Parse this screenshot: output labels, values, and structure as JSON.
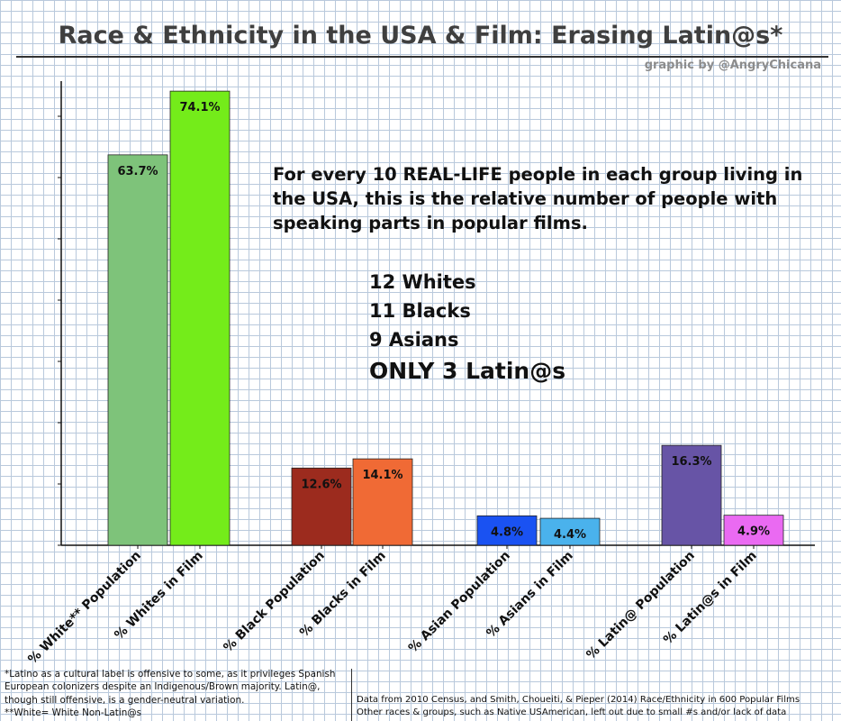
{
  "title": "Race & Ethnicity in the USA & Film: Erasing Latin@s*",
  "credit": "graphic by @AngryChicana",
  "annotation": "For every 10 REAL-LIFE people in each group living in the USA, this is the relative number of people with speaking parts in popular films.",
  "counts": [
    "12 Whites",
    "11 Blacks",
    "9 Asians"
  ],
  "counts_emphasis": "ONLY  3 Latin@s",
  "footnotes_left": [
    "*Latino as a cultural label is offensive to some, as it privileges Spanish European colonizers despite an Indigenous/Brown majority. Latin@, though still offensive, is a gender-neutral variation.",
    "**White= White Non-Latin@s"
  ],
  "footnotes_right": [
    "Data from 2010 Census, and Smith, Choueiti, & Pieper (2014) Race/Ethnicity in 600 Popular Films",
    "Other races & groups, such as Native USAmerican, left out due to small #s and/or lack of data"
  ],
  "chart_data": {
    "type": "bar",
    "title": "Race & Ethnicity in the USA & Film: Erasing Latin@s*",
    "xlabel": "",
    "ylabel": "",
    "ylim": [
      0,
      75
    ],
    "grid": true,
    "data_labels": true,
    "bars": [
      {
        "category": "% White** Population",
        "value": 63.7,
        "label": "63.7%",
        "color": "#7ec37a"
      },
      {
        "category": "% Whites in Film",
        "value": 74.1,
        "label": "74.1%",
        "color": "#74ec1a"
      },
      {
        "category": "% Black Population",
        "value": 12.6,
        "label": "12.6%",
        "color": "#9c2b1e"
      },
      {
        "category": "% Blacks in Film",
        "value": 14.1,
        "label": "14.1%",
        "color": "#f06a35"
      },
      {
        "category": "% Asian Population",
        "value": 4.8,
        "label": "4.8%",
        "color": "#1a52f2"
      },
      {
        "category": "% Asians in Film",
        "value": 4.4,
        "label": "4.4%",
        "color": "#4ab2ec"
      },
      {
        "category": "% Latin@ Population",
        "value": 16.3,
        "label": "16.3%",
        "color": "#6754a6"
      },
      {
        "category": "% Latin@s in Film",
        "value": 4.9,
        "label": "4.9%",
        "color": "#ea6af2"
      }
    ]
  }
}
